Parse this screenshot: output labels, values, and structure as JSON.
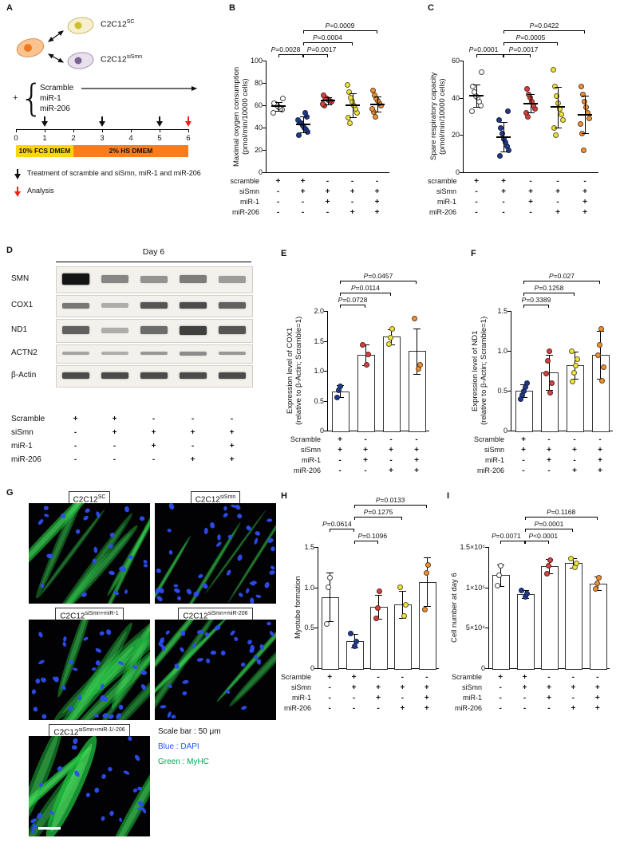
{
  "colors": {
    "group_fills": [
      "#ffffff",
      "#20398f",
      "#d9413d",
      "#f2e33b",
      "#ef9133"
    ],
    "analysis_arrow": "#e8231f",
    "dapi_blue": "#2255ee",
    "myhc_green": "#00a651"
  },
  "panelA": {
    "letter": "A",
    "plus": "+",
    "brace": "{",
    "cell_labels": [
      {
        "base": "C2C12",
        "sup": "SC"
      },
      {
        "base": "C2C12",
        "sup": "siSmn"
      }
    ],
    "treatments": [
      "Scramble",
      "miR-1",
      "miR-206"
    ],
    "timeline": {
      "days": [
        "0",
        "1",
        "2",
        "3",
        "4",
        "5",
        "6"
      ],
      "black_arrow_days": [
        1,
        3,
        5
      ],
      "red_arrow_days": [
        6
      ],
      "phases": [
        {
          "label": "10% FCS DMEM",
          "from": 0,
          "to": 2,
          "color": "#ffd60a"
        },
        {
          "label": "2% HS DMEM",
          "from": 2,
          "to": 6,
          "color": "#f97c1e"
        }
      ]
    },
    "legend": [
      {
        "arrow": "black",
        "text": "Treatment of scramble and siSmn, miR-1 and miR-206"
      },
      {
        "arrow": "red",
        "text": "Analysis"
      }
    ]
  },
  "panelB": {
    "letter": "B",
    "chart": {
      "type": "scatter",
      "ylabel": [
        "Maximal oxygen consumption",
        "(pmol/min/10000 cells)"
      ],
      "ylim": [
        0,
        100
      ],
      "yticks": [
        0,
        20,
        40,
        60,
        80,
        100
      ],
      "groups": [
        {
          "fill": "#ffffff",
          "mean": 59,
          "sd": 4,
          "points": [
            53,
            56,
            57,
            58,
            60,
            61,
            62,
            66
          ]
        },
        {
          "fill": "#20398f",
          "mean": 43,
          "sd": 7,
          "points": [
            33,
            36,
            38,
            40,
            42,
            44,
            45,
            47,
            50,
            53
          ]
        },
        {
          "fill": "#d9413d",
          "mean": 64,
          "sd": 3,
          "points": [
            60,
            61,
            63,
            64,
            65,
            66,
            67,
            69
          ]
        },
        {
          "fill": "#f2e33b",
          "mean": 60,
          "sd": 11,
          "points": [
            44,
            49,
            53,
            57,
            60,
            63,
            67,
            72,
            78
          ]
        },
        {
          "fill": "#ef9133",
          "mean": 61,
          "sd": 7,
          "points": [
            50,
            54,
            57,
            60,
            62,
            64,
            66,
            69,
            73
          ]
        }
      ],
      "brackets": [
        {
          "from": 0,
          "to": 1,
          "level": 0,
          "label": "P=0.0028",
          "dx": -6
        },
        {
          "from": 1,
          "to": 2,
          "level": 0,
          "label": "P=0.0017",
          "dx": 8
        },
        {
          "from": 1,
          "to": 3,
          "level": 1,
          "label": "P=0.0004"
        },
        {
          "from": 1,
          "to": 4,
          "level": 2,
          "label": "P=0.0009"
        }
      ],
      "matrix": {
        "rows": [
          "scramble",
          "siSmn",
          "miR-1",
          "miR-206"
        ],
        "signs": [
          [
            "+",
            "+",
            "-",
            "-",
            "-"
          ],
          [
            "-",
            "+",
            "+",
            "+",
            "+"
          ],
          [
            "-",
            "-",
            "+",
            "-",
            "+"
          ],
          [
            "-",
            "-",
            "-",
            "+",
            "+"
          ]
        ]
      }
    }
  },
  "panelC": {
    "letter": "C",
    "chart": {
      "type": "scatter",
      "ylabel": [
        "Spare respiratory capacity",
        "(pmol/min/10000 cells)"
      ],
      "ylim": [
        0,
        60
      ],
      "yticks": [
        0,
        20,
        40,
        60
      ],
      "groups": [
        {
          "fill": "#ffffff",
          "mean": 41,
          "sd": 6,
          "points": [
            33,
            36,
            38,
            40,
            41,
            43,
            46,
            54
          ]
        },
        {
          "fill": "#20398f",
          "mean": 19,
          "sd": 8,
          "points": [
            9,
            12,
            14,
            16,
            18,
            21,
            24,
            28,
            33
          ]
        },
        {
          "fill": "#d9413d",
          "mean": 37,
          "sd": 5,
          "points": [
            30,
            32,
            34,
            36,
            38,
            40,
            42,
            45
          ]
        },
        {
          "fill": "#f2e33b",
          "mean": 35,
          "sd": 11,
          "points": [
            20,
            24,
            28,
            31,
            34,
            37,
            41,
            46,
            55
          ]
        },
        {
          "fill": "#ef9133",
          "mean": 31,
          "sd": 10,
          "points": [
            12,
            21,
            26,
            29,
            32,
            35,
            38,
            42,
            46
          ]
        }
      ],
      "brackets": [
        {
          "from": 0,
          "to": 1,
          "level": 0,
          "label": "P=0.0001",
          "dx": -8
        },
        {
          "from": 1,
          "to": 2,
          "level": 0,
          "label": "P=0.0017",
          "dx": 8
        },
        {
          "from": 1,
          "to": 3,
          "level": 1,
          "label": "P=0.0005"
        },
        {
          "from": 1,
          "to": 4,
          "level": 2,
          "label": "P=0.0422"
        }
      ],
      "matrix": {
        "rows": [
          "scramble",
          "siSmn",
          "miR-1",
          "miR-206"
        ],
        "signs": [
          [
            "+",
            "+",
            "-",
            "-",
            "-"
          ],
          [
            "-",
            "+",
            "+",
            "+",
            "+"
          ],
          [
            "-",
            "-",
            "+",
            "-",
            "+"
          ],
          [
            "-",
            "-",
            "-",
            "+",
            "+"
          ]
        ]
      }
    }
  },
  "panelD": {
    "letter": "D",
    "blot": {
      "title": "Day 6",
      "proteins": [
        {
          "name": "SMN",
          "band_h": 10,
          "intensities": [
            1,
            0.48,
            0.42,
            0.52,
            0.38
          ]
        },
        {
          "name": "COX1",
          "band_h": 7,
          "intensities": [
            0.55,
            0.3,
            0.7,
            0.75,
            0.65
          ]
        },
        {
          "name": "ND1",
          "band_h": 9,
          "intensities": [
            0.65,
            0.3,
            0.6,
            0.8,
            0.7
          ]
        },
        {
          "name": "ACTN2",
          "band_h": 5,
          "intensities": [
            0.35,
            0.3,
            0.4,
            0.45,
            0.4
          ]
        },
        {
          "name": "β-Actin",
          "band_h": 7,
          "intensities": [
            0.75,
            0.75,
            0.75,
            0.75,
            0.75
          ]
        }
      ]
    },
    "matrix": {
      "rows": [
        "Scramble",
        "siSmn",
        "miR-1",
        "miR-206"
      ],
      "signs": [
        [
          "+",
          "+",
          "-",
          "-",
          "-"
        ],
        [
          "-",
          "+",
          "+",
          "+",
          "+"
        ],
        [
          "-",
          "-",
          "+",
          "-",
          "+"
        ],
        [
          "-",
          "-",
          "-",
          "+",
          "+"
        ]
      ]
    }
  },
  "panelE": {
    "letter": "E",
    "chart": {
      "type": "bar",
      "decimals": true,
      "ylabel": [
        "Expression level of COX1",
        "(relative to β-Actin; Scramble=1)"
      ],
      "ylim": [
        0,
        2
      ],
      "yticks": [
        0,
        0.5,
        1,
        1.5,
        2
      ],
      "groups": [
        {
          "fill": "#20398f",
          "value": 0.66,
          "sd": 0.1,
          "points": [
            0.56,
            0.67,
            0.74
          ]
        },
        {
          "fill": "#d9413d",
          "value": 1.27,
          "sd": 0.17,
          "points": [
            1.1,
            1.28,
            1.43
          ]
        },
        {
          "fill": "#f2e33b",
          "value": 1.57,
          "sd": 0.13,
          "points": [
            1.45,
            1.56,
            1.7
          ]
        },
        {
          "fill": "#ef9133",
          "value": 1.33,
          "sd": 0.38,
          "points": [
            1.03,
            1.1,
            1.88
          ]
        }
      ],
      "brackets": [
        {
          "from": 0,
          "to": 1,
          "level": 0,
          "label": "P=0.0728"
        },
        {
          "from": 0,
          "to": 2,
          "level": 1,
          "label": "P=0.0114"
        },
        {
          "from": 0,
          "to": 3,
          "level": 2,
          "label": "P=0.0457"
        }
      ],
      "matrix": {
        "rows": [
          "Scramble",
          "siSmn",
          "miR-1",
          "miR-206"
        ],
        "signs": [
          [
            "+",
            "-",
            "-",
            "-"
          ],
          [
            "+",
            "+",
            "+",
            "+"
          ],
          [
            "-",
            "+",
            "-",
            "+"
          ],
          [
            "-",
            "-",
            "+",
            "+"
          ]
        ]
      }
    }
  },
  "panelF": {
    "letter": "F",
    "chart": {
      "type": "bar",
      "decimals": true,
      "ylabel": [
        "Expression level of ND1",
        "(relative to β-Actin; Scramble=1)"
      ],
      "ylim": [
        0,
        1.5
      ],
      "yticks": [
        0,
        0.5,
        1,
        1.5
      ],
      "groups": [
        {
          "fill": "#20398f",
          "value": 0.5,
          "sd": 0.08,
          "points": [
            0.4,
            0.45,
            0.5,
            0.55,
            0.6
          ]
        },
        {
          "fill": "#d9413d",
          "value": 0.73,
          "sd": 0.22,
          "points": [
            0.48,
            0.6,
            0.72,
            0.88,
            1.0
          ]
        },
        {
          "fill": "#f2e33b",
          "value": 0.82,
          "sd": 0.17,
          "points": [
            0.62,
            0.73,
            0.82,
            0.9,
            1.0
          ]
        },
        {
          "fill": "#ef9133",
          "value": 0.95,
          "sd": 0.3,
          "points": [
            0.63,
            0.8,
            0.95,
            1.08,
            1.28
          ]
        }
      ],
      "brackets": [
        {
          "from": 0,
          "to": 1,
          "level": 0,
          "label": "P=0.3389"
        },
        {
          "from": 0,
          "to": 2,
          "level": 1,
          "label": "P=0.1258"
        },
        {
          "from": 0,
          "to": 3,
          "level": 2,
          "label": "P=0.027"
        }
      ],
      "matrix": {
        "rows": [
          "Scramble",
          "siSmn",
          "miR-1",
          "miR-206"
        ],
        "signs": [
          [
            "+",
            "-",
            "-",
            "-"
          ],
          [
            "+",
            "+",
            "+",
            "+"
          ],
          [
            "-",
            "+",
            "-",
            "+"
          ],
          [
            "-",
            "-",
            "+",
            "+"
          ]
        ]
      }
    }
  },
  "panelG": {
    "letter": "G",
    "images": [
      {
        "base": "C2C12",
        "sup": "SC",
        "col": 0,
        "row": 0,
        "fibers": 7,
        "fw": 9,
        "nuclei": 25,
        "glow": 0.9
      },
      {
        "base": "C2C12",
        "sup": "siSmn",
        "col": 1,
        "row": 0,
        "fibers": 4,
        "fw": 4,
        "nuclei": 42,
        "glow": 0.55
      },
      {
        "base": "C2C12",
        "sup": "siSmn+miR-1",
        "col": 0,
        "row": 1,
        "fibers": 9,
        "fw": 11,
        "nuclei": 34,
        "glow": 1
      },
      {
        "base": "C2C12",
        "sup": "siSmn+miR-206",
        "col": 1,
        "row": 1,
        "fibers": 5,
        "fw": 7,
        "nuclei": 36,
        "glow": 0.8
      },
      {
        "base": "C2C12",
        "sup": "siSmn+miR-1/-206",
        "col": 0,
        "row": 2,
        "fibers": 5,
        "fw": 18,
        "nuclei": 26,
        "glow": 1,
        "scalebar": true
      }
    ],
    "legend": [
      {
        "text": "Scale bar : 50 μm",
        "color": "#111111"
      },
      {
        "text": "Blue : DAPI",
        "color": "#2255ee"
      },
      {
        "text": "Green : MyHC",
        "color": "#00a651"
      }
    ]
  },
  "panelH": {
    "letter": "H",
    "chart": {
      "type": "bar",
      "decimals": true,
      "ylabel": [
        "Myotube formation"
      ],
      "ylim": [
        0,
        1.5
      ],
      "yticks": [
        0,
        0.5,
        1,
        1.5
      ],
      "groups": [
        {
          "fill": "#ffffff",
          "value": 0.88,
          "sd": 0.3,
          "points": [
            0.55,
            1.0,
            1.12
          ]
        },
        {
          "fill": "#20398f",
          "value": 0.34,
          "sd": 0.08,
          "points": [
            0.27,
            0.33,
            0.43
          ]
        },
        {
          "fill": "#d9413d",
          "value": 0.76,
          "sd": 0.15,
          "points": [
            0.62,
            0.75,
            0.95
          ]
        },
        {
          "fill": "#f2e33b",
          "value": 0.79,
          "sd": 0.17,
          "points": [
            0.65,
            0.78,
            1.0
          ]
        },
        {
          "fill": "#ef9133",
          "value": 1.07,
          "sd": 0.3,
          "points": [
            0.73,
            1.18,
            1.28
          ]
        }
      ],
      "brackets": [
        {
          "from": 1,
          "to": 2,
          "level": 0,
          "label": "P=0.1096",
          "dx": 8
        },
        {
          "from": 0,
          "to": 1,
          "level": 1,
          "label": "P=0.0614",
          "dx": -6
        },
        {
          "from": 1,
          "to": 3,
          "level": 2,
          "label": "P=0.1275"
        },
        {
          "from": 1,
          "to": 4,
          "level": 3,
          "label": "P=0.0133"
        }
      ],
      "matrix": {
        "rows": [
          "Scramble",
          "siSmn",
          "miR-1",
          "miR-206"
        ],
        "signs": [
          [
            "+",
            "+",
            "-",
            "-",
            "-"
          ],
          [
            "-",
            "+",
            "+",
            "+",
            "+"
          ],
          [
            "-",
            "-",
            "+",
            "-",
            "+"
          ],
          [
            "-",
            "-",
            "-",
            "+",
            "+"
          ]
        ]
      }
    }
  },
  "panelI": {
    "letter": "I",
    "chart": {
      "type": "bar",
      "ylabel": [
        "Cell number at day 6"
      ],
      "ylim": [
        0,
        1.5
      ],
      "yticks": [
        0,
        0.5,
        1,
        1.5
      ],
      "ytick_labels": [
        "0",
        "5×10⁴",
        "1×10⁵",
        "1.5×10⁵"
      ],
      "groups": [
        {
          "fill": "#ffffff",
          "value": 1.15,
          "sd": 0.13,
          "points": [
            1.02,
            1.15,
            1.27
          ]
        },
        {
          "fill": "#20398f",
          "value": 0.92,
          "sd": 0.05,
          "points": [
            0.88,
            0.92,
            0.96
          ]
        },
        {
          "fill": "#d9413d",
          "value": 1.26,
          "sd": 0.09,
          "points": [
            1.17,
            1.27,
            1.34
          ]
        },
        {
          "fill": "#f2e33b",
          "value": 1.3,
          "sd": 0.06,
          "points": [
            1.25,
            1.3,
            1.36
          ]
        },
        {
          "fill": "#ef9133",
          "value": 1.05,
          "sd": 0.08,
          "points": [
            0.98,
            1.05,
            1.12
          ]
        }
      ],
      "brackets": [
        {
          "from": 0,
          "to": 1,
          "level": 0,
          "label": "P=0.0071",
          "dx": -8
        },
        {
          "from": 1,
          "to": 2,
          "level": 0,
          "label": "P<0.0001",
          "dx": 8
        },
        {
          "from": 1,
          "to": 3,
          "level": 1,
          "label": "P=0.0001"
        },
        {
          "from": 1,
          "to": 4,
          "level": 2,
          "label": "P=0.1168"
        }
      ],
      "matrix": {
        "rows": [
          "Scramble",
          "siSmn",
          "miR-1",
          "miR-206"
        ],
        "signs": [
          [
            "+",
            "+",
            "-",
            "-",
            "-"
          ],
          [
            "-",
            "+",
            "+",
            "+",
            "+"
          ],
          [
            "-",
            "-",
            "+",
            "-",
            "+"
          ],
          [
            "-",
            "-",
            "-",
            "+",
            "+"
          ]
        ]
      }
    }
  }
}
